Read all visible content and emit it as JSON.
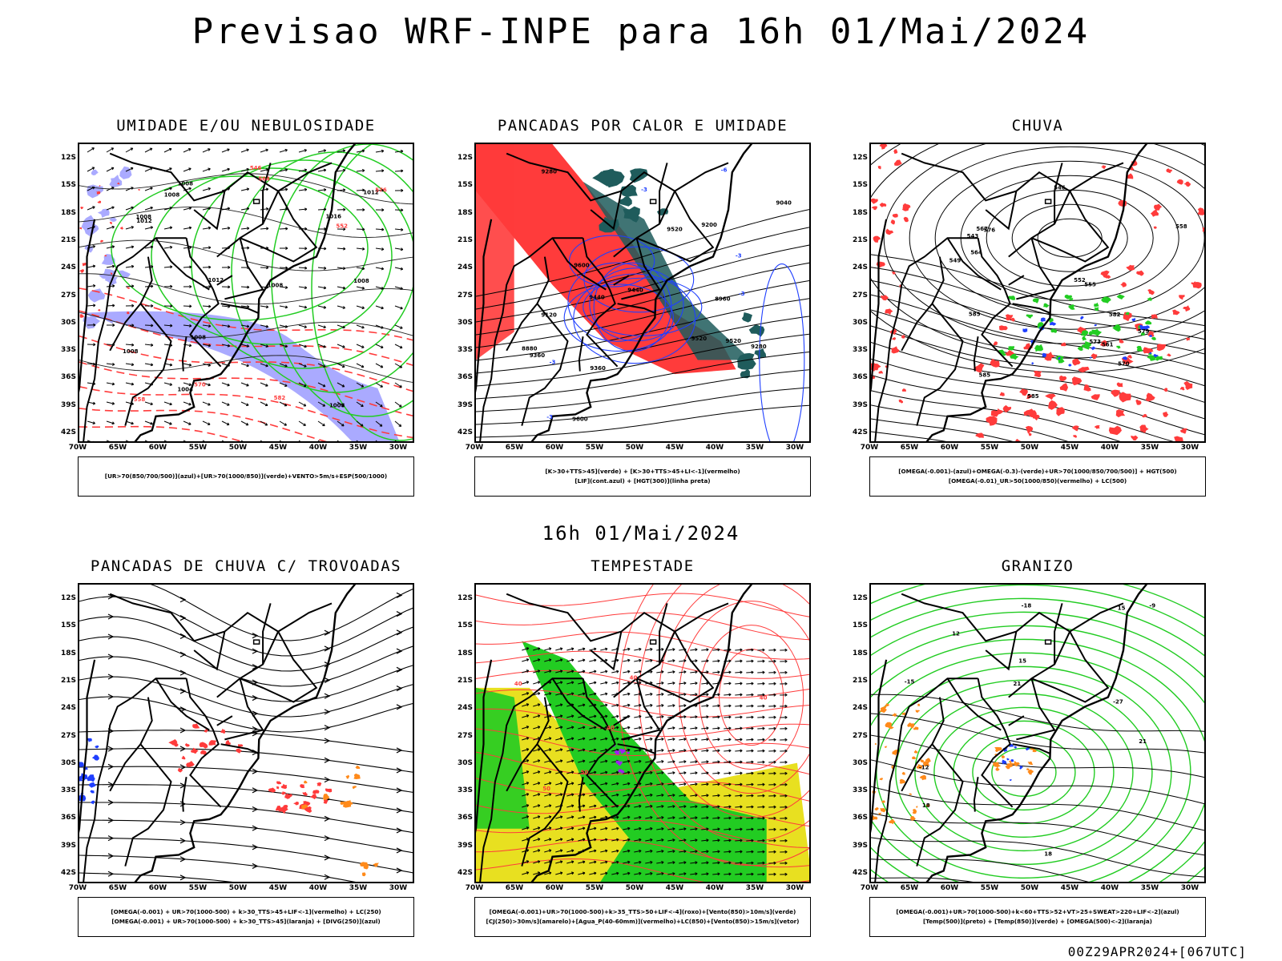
{
  "title": "Previsao WRF-INPE  para 16h 01/Mai/2024",
  "middle_time": "16h 01/Mai/2024",
  "footer": "00Z29APR2024+[067UTC]",
  "axes": {
    "lat_labels": [
      "12S",
      "15S",
      "18S",
      "21S",
      "24S",
      "27S",
      "30S",
      "33S",
      "36S",
      "39S",
      "42S"
    ],
    "lon_labels": [
      "70W",
      "65W",
      "60W",
      "55W",
      "50W",
      "45W",
      "40W",
      "35W",
      "30W"
    ]
  },
  "colors": {
    "red": "#ff3b3b",
    "green": "#22cc22",
    "blue": "#1f3fff",
    "lavender": "#aaaaff",
    "dark_teal": "#1f5c5c",
    "yellow": "#e8e020",
    "orange": "#ff8a1a",
    "purple": "#a020f0",
    "black": "#000000"
  },
  "panels": [
    {
      "title": "UMIDADE E/OU NEBULOSIDADE",
      "legend": [
        "[UR>70(850/700/500)](azul)+[UR>70(1000/850)](verde)+VENTO>5m/s+ESP(500/1000)"
      ],
      "labels": [
        "1008",
        "1008",
        "1012",
        "1008",
        "1008",
        "1012",
        "1008",
        "1004",
        "1008",
        "1012",
        "1016",
        "1008",
        "1008",
        "576",
        "570",
        "564",
        "558",
        "552",
        "546",
        "582"
      ]
    },
    {
      "title": "PANCADAS POR CALOR E UMIDADE",
      "legend": [
        "[K>30+TTS>45](verde) + [K>30+TTS>45+LI<-1](vermelho)",
        "[LIF](cont.azul) + [HGT(300)](linha preta)"
      ],
      "labels": [
        "9600",
        "9520",
        "9440",
        "9360",
        "9280",
        "9200",
        "9120",
        "9040",
        "8960",
        "8880",
        "9600",
        "9520",
        "9440",
        "9360",
        "9280",
        "9520",
        "-3",
        "-3",
        "-3",
        "-6",
        "-3",
        "-3"
      ]
    },
    {
      "title": "CHUVA",
      "legend": [
        "[OMEGA(-0.001)-(azul)+OMEGA(-0.3)-(verde)+UR>70(1000/850/700/500)] + HGT(500)",
        "[OMEGA(-0.01)_UR>50(1000/850)(vermelho) + LC(500)"
      ],
      "labels": [
        "585",
        "585",
        "585",
        "579",
        "573",
        "567",
        "561",
        "555",
        "549",
        "543",
        "582",
        "576",
        "570",
        "564",
        "558",
        "552",
        "546"
      ]
    },
    {
      "title": "PANCADAS DE CHUVA C/ TROVOADAS",
      "legend": [
        "[OMEGA(-0.001) + UR>70(1000-500) + k>30_TTS>45+LIF<-1](vermelho) + LC(250)",
        "[OMEGA(-0.001) + UR>70(1000-500) + k>30_TTS>45](laranja) + [DIVG(250)](azul)"
      ],
      "labels": []
    },
    {
      "title": "TEMPESTADE",
      "legend": [
        "[OMEGA(-0.001)+UR>70(1000-500)+k>35_TTS>50+LIF<-4](roxo)+[Vento(850)>10m/s](verde)",
        "[CJ(250)>30m/s](amarelo)+[Agua_P(40-60mm)](vermelho)+LC(850)+[Vento(850)>15m/s](vetor)"
      ],
      "labels": [
        "40",
        "40",
        "50",
        "40",
        "50",
        "40"
      ]
    },
    {
      "title": "GRANIZO",
      "legend": [
        "[OMEGA(-0.001)+UR>70(1000-500)+k<60+TTS>52+VT>25+SWEAT>220+LIF<-2](azul)",
        "[Temp(500)](preto) + [Temp(850)](verde) + [OMEGA(500)<-2](laranja)"
      ],
      "labels": [
        "21",
        "21",
        "18",
        "15",
        "-12",
        "-15",
        "-18",
        "-27",
        "18",
        "15",
        "12",
        "-9"
      ]
    }
  ]
}
